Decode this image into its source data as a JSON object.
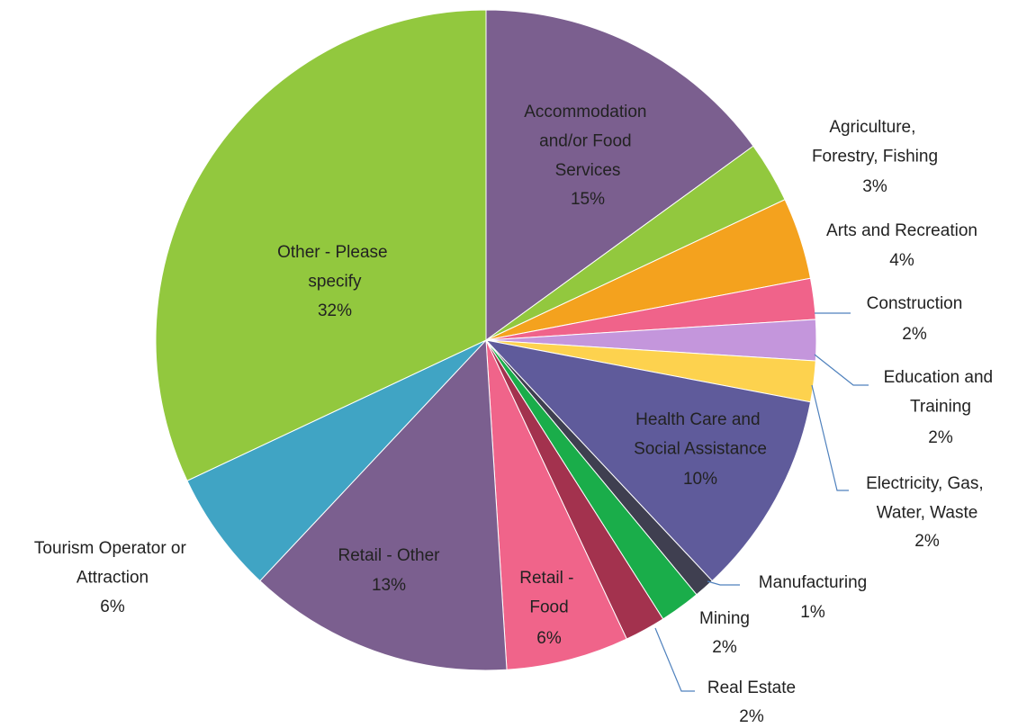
{
  "chart_data": {
    "type": "pie",
    "categories": [
      "Accommodation and/or Food Services",
      "Agriculture, Forestry, Fishing",
      "Arts and Recreation",
      "Construction",
      "Education and Training",
      "Electricity, Gas, Water, Waste",
      "Health Care and Social Assistance",
      "Manufacturing",
      "Mining",
      "Real Estate",
      "Retail - Food",
      "Retail - Other",
      "Tourism Operator or Attraction",
      "Other - Please specify"
    ],
    "values": [
      15,
      3,
      4,
      2,
      2,
      2,
      10,
      1,
      2,
      2,
      6,
      13,
      6,
      32
    ],
    "value_labels": [
      "15%",
      "3%",
      "4%",
      "2%",
      "2%",
      "2%",
      "10%",
      "1%",
      "2%",
      "2%",
      "6%",
      "13%",
      "6%",
      "32%"
    ],
    "colors": [
      "#7b5f8f",
      "#92c83e",
      "#f4a21e",
      "#f0638a",
      "#c496dc",
      "#fdd24e",
      "#5f5b9b",
      "#3f3f50",
      "#1aad4a",
      "#a3324e",
      "#f0648a",
      "#7b5f8f",
      "#40a4c4",
      "#92c83e"
    ]
  }
}
